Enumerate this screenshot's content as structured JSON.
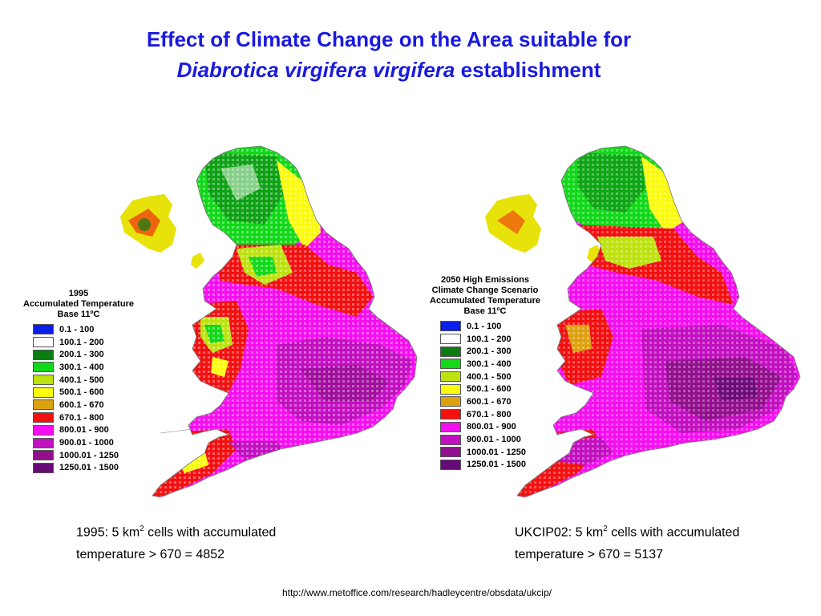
{
  "title": {
    "line1": "Effect of Climate Change on the Area suitable for",
    "species": "Diabrotica virgifera virgifera",
    "line2_suffix": "establishment"
  },
  "legend_left": {
    "heading": [
      "1995",
      "Accumulated Temperature",
      "Base 11ºC"
    ]
  },
  "legend_right": {
    "heading": [
      "2050 High Emissions",
      "Climate Change Scenario",
      "Accumulated Temperature",
      "Base 11ºC"
    ]
  },
  "legend_classes": [
    {
      "label": "0.1 - 100",
      "color": "#0a1fe8"
    },
    {
      "label": "100.1 - 200",
      "color": "#ffffff"
    },
    {
      "label": "200.1 - 300",
      "color": "#0b7d12"
    },
    {
      "label": "300.1 - 400",
      "color": "#12d81a"
    },
    {
      "label": "400.1 - 500",
      "color": "#bde20e"
    },
    {
      "label": "500.1 - 600",
      "color": "#fbfb0c"
    },
    {
      "label": "600.1 - 670",
      "color": "#dda110"
    },
    {
      "label": "670.1 - 800",
      "color": "#f31010"
    },
    {
      "label": "800.01 - 900",
      "color": "#f50ff0"
    },
    {
      "label": "900.01 - 1000",
      "color": "#c210c0"
    },
    {
      "label": "1000.01 - 1250",
      "color": "#92108e"
    },
    {
      "label": "1250.01 - 1500",
      "color": "#650a76"
    }
  ],
  "captions": {
    "left": {
      "prefix": "1995: 5 km",
      "sup": "2",
      "suffix": " cells with accumulated",
      "line2": "temperature > 670 = 4852"
    },
    "right": {
      "prefix": "UKCIP02: 5 km",
      "sup": "2",
      "suffix": " cells with accumulated",
      "line2": "temperature > 670 = 5137"
    }
  },
  "source_url": "http://www.metoffice.com/research/hadleycentre/obsdata/ukcip/"
}
